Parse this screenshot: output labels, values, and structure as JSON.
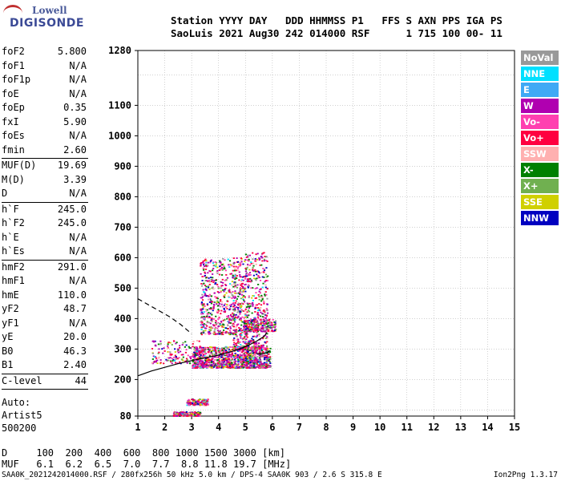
{
  "logo": {
    "line1": "Lowell",
    "line2": "DIGISONDE"
  },
  "header": {
    "row1": "Station YYYY DAY   DDD HHMMSS P1   FFS S AXN PPS IGA PS",
    "row2": "SaoLuis 2021 Aug30 242 014000 RSF      1 715 100 00- 11"
  },
  "params": {
    "group1": [
      {
        "name": "foF2",
        "value": "5.800"
      },
      {
        "name": "foF1",
        "value": "N/A"
      },
      {
        "name": "foF1p",
        "value": "N/A"
      },
      {
        "name": "foE",
        "value": "N/A"
      },
      {
        "name": "foEp",
        "value": "0.35"
      },
      {
        "name": "fxI",
        "value": "5.90"
      },
      {
        "name": "foEs",
        "value": "N/A"
      },
      {
        "name": "fmin",
        "value": "2.60"
      }
    ],
    "group2": [
      {
        "name": "MUF(D)",
        "value": "19.69"
      },
      {
        "name": "M(D)",
        "value": "3.39"
      },
      {
        "name": "D",
        "value": "N/A"
      }
    ],
    "group3": [
      {
        "name": "h`F",
        "value": "245.0"
      },
      {
        "name": "h`F2",
        "value": "245.0"
      },
      {
        "name": "h`E",
        "value": "N/A"
      },
      {
        "name": "h`Es",
        "value": "N/A"
      }
    ],
    "group4": [
      {
        "name": "hmF2",
        "value": "291.0"
      },
      {
        "name": "hmF1",
        "value": "N/A"
      },
      {
        "name": "hmE",
        "value": "110.0"
      },
      {
        "name": "yF2",
        "value": "48.7"
      },
      {
        "name": "yF1",
        "value": "N/A"
      },
      {
        "name": "yE",
        "value": "20.0"
      },
      {
        "name": "B0",
        "value": "46.3"
      },
      {
        "name": "B1",
        "value": "2.40"
      }
    ],
    "group5": [
      {
        "name": "C-level",
        "value": "44"
      }
    ],
    "auto": [
      "Auto:",
      "Artist5",
      "500200"
    ]
  },
  "legend": [
    {
      "label": "NoVal",
      "color": "#999999"
    },
    {
      "label": "NNE",
      "color": "#00e0ff"
    },
    {
      "label": "E",
      "color": "#3fa9f5"
    },
    {
      "label": "W",
      "color": "#b000b0"
    },
    {
      "label": "Vo-",
      "color": "#ff40b0"
    },
    {
      "label": "Vo+",
      "color": "#ff0040"
    },
    {
      "label": "SSW",
      "color": "#ffb0b0"
    },
    {
      "label": "X-",
      "color": "#008000"
    },
    {
      "label": "X+",
      "color": "#70b050"
    },
    {
      "label": "SSE",
      "color": "#d0d000"
    },
    {
      "label": "NNW",
      "color": "#0000c0"
    }
  ],
  "footer": {
    "d_row": "D     100  200  400  600  800 1000 1500 3000 [km]",
    "muf_row": "MUF   6.1  6.2  6.5  7.0  7.7  8.8 11.8 19.7 [MHz]",
    "bottom": "SAA0K_2021242014000.RSF / 280fx256h 50 kHz 5.0 km / DPS-4 SAA0K 903 / 2.6 S 315.8 E",
    "version": "Ion2Png 1.3.17"
  },
  "chart_data": {
    "type": "scatter",
    "title": "",
    "xlabel": "",
    "ylabel": "",
    "xlim": [
      1,
      15
    ],
    "ylim": [
      80,
      1280
    ],
    "x_ticks": [
      1,
      2,
      3,
      4,
      5,
      6,
      7,
      8,
      9,
      10,
      11,
      12,
      13,
      14,
      15
    ],
    "y_ticks": [
      80,
      200,
      300,
      400,
      500,
      600,
      700,
      800,
      900,
      1000,
      1100,
      1280
    ],
    "grid": true,
    "legend_position": "right",
    "echo_clusters": [
      {
        "x": [
          2.3,
          3.3
        ],
        "y": [
          82,
          96
        ],
        "density": 260
      },
      {
        "x": [
          2.8,
          3.6
        ],
        "y": [
          118,
          138
        ],
        "density": 140
      },
      {
        "x": [
          3.0,
          5.9
        ],
        "y": [
          240,
          310
        ],
        "density": 1100
      },
      {
        "x": [
          3.3,
          4.6
        ],
        "y": [
          350,
          600
        ],
        "density": 520
      },
      {
        "x": [
          4.5,
          5.8
        ],
        "y": [
          300,
          620
        ],
        "density": 650
      },
      {
        "x": [
          1.5,
          3.3
        ],
        "y": [
          255,
          330
        ],
        "density": 160
      },
      {
        "x": [
          4.9,
          6.1
        ],
        "y": [
          360,
          400
        ],
        "density": 220
      }
    ],
    "trace_o": {
      "x": [
        1.0,
        1.5,
        2.0,
        2.5,
        3.0,
        3.5,
        4.0,
        4.5,
        5.0,
        5.4,
        5.7,
        5.8
      ],
      "y": [
        212,
        228,
        240,
        252,
        262,
        271,
        280,
        292,
        308,
        325,
        342,
        355
      ]
    },
    "trace_x": {
      "x": [
        5.4,
        5.6,
        5.8,
        5.9
      ],
      "y": [
        285,
        285,
        288,
        295
      ]
    },
    "dashed_trace": {
      "x": [
        1.0,
        1.4,
        1.8,
        2.2,
        2.6,
        3.0
      ],
      "y": [
        465,
        445,
        425,
        405,
        380,
        350
      ]
    }
  }
}
